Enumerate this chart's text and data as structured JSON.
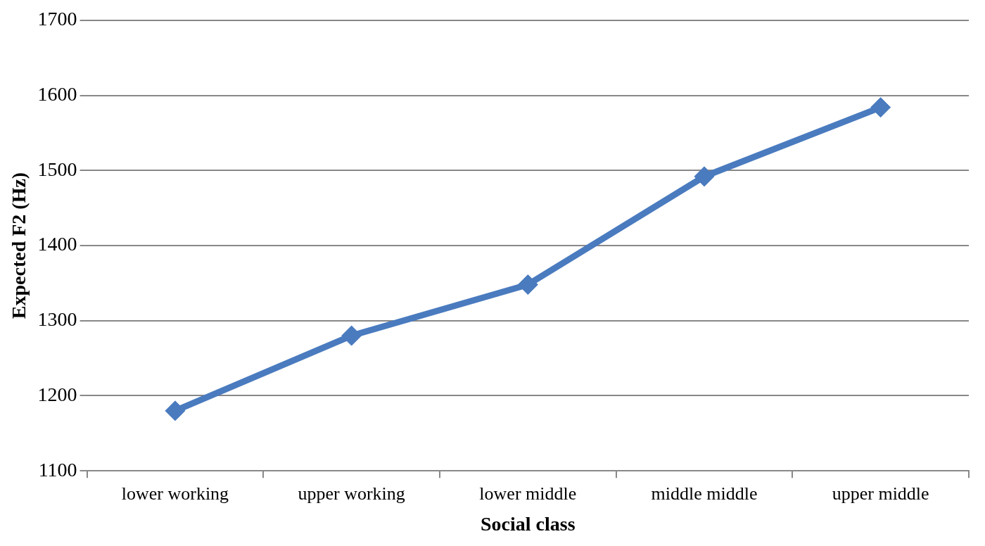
{
  "chart_data": {
    "type": "line",
    "xlabel": "Social class",
    "ylabel": "Expected F2 (Hz)",
    "categories": [
      "lower working",
      "upper working",
      "lower middle",
      "middle middle",
      "upper middle"
    ],
    "series": [
      {
        "color": "#4a7bbf",
        "values": [
          1180,
          1280,
          1348,
          1492,
          1584
        ]
      }
    ],
    "ylim": [
      1100,
      1700
    ],
    "yticks": [
      1100,
      1200,
      1300,
      1400,
      1500,
      1600,
      1700
    ],
    "grid": "y",
    "legend": false,
    "marker": "diamond",
    "line_style": "solid"
  }
}
